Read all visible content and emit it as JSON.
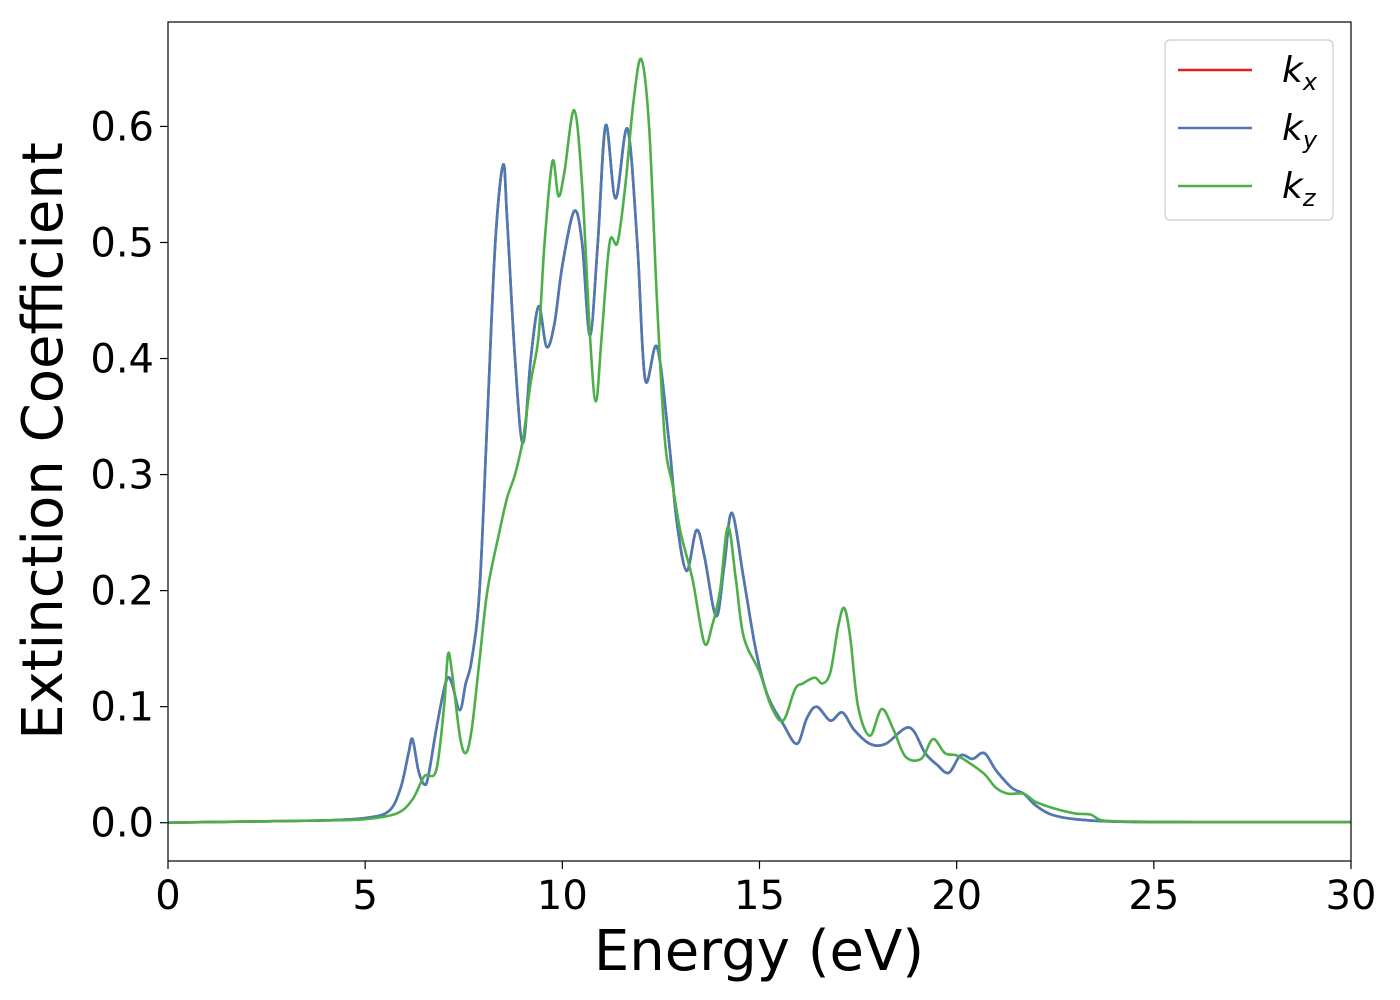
{
  "chart_data": {
    "type": "line",
    "xlabel": "Energy (eV)",
    "ylabel": "Extinction Coefficient",
    "xlim": [
      0,
      30
    ],
    "ylim": [
      -0.033,
      0.69
    ],
    "xticks": [
      0,
      5,
      10,
      15,
      20,
      25,
      30
    ],
    "xtick_labels": [
      "0",
      "5",
      "10",
      "15",
      "20",
      "25",
      "30"
    ],
    "yticks": [
      0.0,
      0.1,
      0.2,
      0.3,
      0.4,
      0.5,
      0.6
    ],
    "ytick_labels": [
      "0.0",
      "0.1",
      "0.2",
      "0.3",
      "0.4",
      "0.5",
      "0.6"
    ],
    "grid": false,
    "legend_position": "top-right",
    "series": [
      {
        "name": "k_x",
        "base": "k",
        "sub": "x",
        "color": "#e41a1c",
        "x": [
          0,
          2,
          4,
          5,
          5.6,
          5.9,
          6.1,
          6.2,
          6.35,
          6.5,
          6.6,
          6.8,
          7.0,
          7.1,
          7.2,
          7.4,
          7.55,
          7.7,
          7.9,
          8.1,
          8.3,
          8.5,
          8.6,
          8.8,
          9.0,
          9.2,
          9.4,
          9.6,
          9.8,
          10.0,
          10.3,
          10.5,
          10.7,
          10.9,
          11.1,
          11.35,
          11.65,
          11.9,
          12.1,
          12.4,
          12.7,
          12.9,
          13.15,
          13.4,
          13.6,
          13.9,
          14.1,
          14.3,
          14.6,
          14.9,
          15.2,
          15.6,
          15.95,
          16.2,
          16.45,
          16.8,
          17.1,
          17.4,
          17.8,
          18.2,
          18.8,
          19.2,
          19.5,
          19.8,
          20.1,
          20.4,
          20.7,
          21.0,
          21.4,
          21.7,
          22.0,
          22.4,
          23.0,
          24.0,
          26.0,
          30.0
        ],
        "y": [
          0,
          0.001,
          0.002,
          0.004,
          0.01,
          0.03,
          0.06,
          0.072,
          0.045,
          0.033,
          0.04,
          0.08,
          0.115,
          0.125,
          0.12,
          0.097,
          0.12,
          0.14,
          0.2,
          0.35,
          0.5,
          0.567,
          0.52,
          0.4,
          0.327,
          0.4,
          0.445,
          0.41,
          0.43,
          0.48,
          0.527,
          0.5,
          0.42,
          0.5,
          0.601,
          0.538,
          0.598,
          0.5,
          0.382,
          0.41,
          0.33,
          0.26,
          0.217,
          0.252,
          0.23,
          0.178,
          0.22,
          0.267,
          0.21,
          0.15,
          0.11,
          0.085,
          0.068,
          0.09,
          0.1,
          0.088,
          0.095,
          0.08,
          0.068,
          0.068,
          0.082,
          0.06,
          0.05,
          0.043,
          0.058,
          0.055,
          0.06,
          0.045,
          0.03,
          0.025,
          0.015,
          0.007,
          0.003,
          0.001,
          0.0005,
          0.0005
        ]
      },
      {
        "name": "k_y",
        "base": "k",
        "sub": "y",
        "color": "#4a7bb7",
        "x": [
          0,
          2,
          4,
          5,
          5.6,
          5.9,
          6.1,
          6.2,
          6.35,
          6.5,
          6.6,
          6.8,
          7.0,
          7.1,
          7.2,
          7.4,
          7.55,
          7.7,
          7.9,
          8.1,
          8.3,
          8.5,
          8.6,
          8.8,
          9.0,
          9.2,
          9.4,
          9.6,
          9.8,
          10.0,
          10.3,
          10.5,
          10.7,
          10.9,
          11.1,
          11.35,
          11.65,
          11.9,
          12.1,
          12.4,
          12.7,
          12.9,
          13.15,
          13.4,
          13.6,
          13.9,
          14.1,
          14.3,
          14.6,
          14.9,
          15.2,
          15.6,
          15.95,
          16.2,
          16.45,
          16.8,
          17.1,
          17.4,
          17.8,
          18.2,
          18.8,
          19.2,
          19.5,
          19.8,
          20.1,
          20.4,
          20.7,
          21.0,
          21.4,
          21.7,
          22.0,
          22.4,
          23.0,
          24.0,
          26.0,
          30.0
        ],
        "y": [
          0,
          0.001,
          0.002,
          0.004,
          0.01,
          0.03,
          0.06,
          0.072,
          0.045,
          0.033,
          0.04,
          0.08,
          0.115,
          0.125,
          0.12,
          0.097,
          0.12,
          0.14,
          0.2,
          0.35,
          0.5,
          0.567,
          0.52,
          0.4,
          0.327,
          0.4,
          0.445,
          0.41,
          0.43,
          0.48,
          0.527,
          0.5,
          0.42,
          0.5,
          0.601,
          0.538,
          0.598,
          0.5,
          0.382,
          0.41,
          0.33,
          0.26,
          0.217,
          0.252,
          0.23,
          0.178,
          0.22,
          0.267,
          0.21,
          0.15,
          0.11,
          0.085,
          0.068,
          0.09,
          0.1,
          0.088,
          0.095,
          0.08,
          0.068,
          0.068,
          0.082,
          0.06,
          0.05,
          0.043,
          0.058,
          0.055,
          0.06,
          0.045,
          0.03,
          0.025,
          0.015,
          0.007,
          0.003,
          0.001,
          0.0005,
          0.0005
        ]
      },
      {
        "name": "k_z",
        "base": "k",
        "sub": "z",
        "color": "#4daf4a",
        "x": [
          0,
          2,
          4,
          5,
          5.8,
          6.2,
          6.5,
          6.8,
          7.0,
          7.1,
          7.2,
          7.4,
          7.55,
          7.7,
          7.9,
          8.1,
          8.4,
          8.6,
          8.8,
          9.0,
          9.2,
          9.4,
          9.55,
          9.75,
          9.9,
          10.05,
          10.3,
          10.5,
          10.7,
          10.85,
          11.0,
          11.2,
          11.4,
          11.6,
          11.8,
          12.0,
          12.2,
          12.4,
          12.6,
          12.8,
          13.0,
          13.3,
          13.6,
          13.8,
          14.0,
          14.2,
          14.4,
          14.6,
          15.0,
          15.3,
          15.6,
          15.9,
          16.1,
          16.4,
          16.6,
          16.8,
          17.0,
          17.15,
          17.3,
          17.5,
          17.8,
          18.1,
          18.4,
          18.7,
          19.1,
          19.4,
          19.7,
          20.0,
          20.3,
          20.7,
          21.0,
          21.3,
          21.7,
          22.0,
          22.5,
          23.0,
          23.4,
          23.7,
          24.5,
          26.0,
          30.0
        ],
        "y": [
          0,
          0.001,
          0.002,
          0.003,
          0.008,
          0.02,
          0.04,
          0.045,
          0.1,
          0.145,
          0.13,
          0.075,
          0.06,
          0.08,
          0.14,
          0.2,
          0.25,
          0.28,
          0.3,
          0.33,
          0.38,
          0.42,
          0.5,
          0.57,
          0.54,
          0.56,
          0.614,
          0.55,
          0.42,
          0.363,
          0.42,
          0.5,
          0.5,
          0.55,
          0.62,
          0.658,
          0.6,
          0.45,
          0.33,
          0.29,
          0.25,
          0.21,
          0.155,
          0.17,
          0.2,
          0.255,
          0.21,
          0.16,
          0.13,
          0.1,
          0.088,
          0.115,
          0.12,
          0.125,
          0.12,
          0.13,
          0.17,
          0.185,
          0.16,
          0.1,
          0.075,
          0.098,
          0.08,
          0.057,
          0.055,
          0.072,
          0.06,
          0.058,
          0.052,
          0.042,
          0.03,
          0.025,
          0.025,
          0.018,
          0.012,
          0.008,
          0.007,
          0.002,
          0.001,
          0.0005,
          0.0005
        ]
      }
    ]
  }
}
